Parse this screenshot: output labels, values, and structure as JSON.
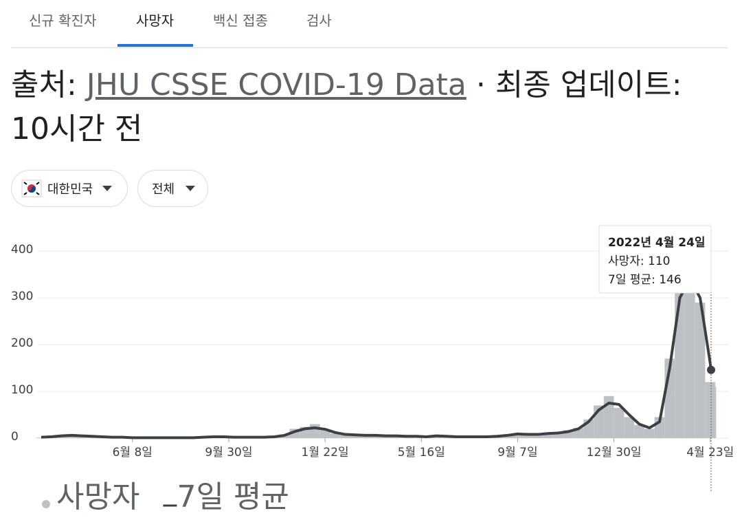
{
  "tabs": [
    "신규 확진자",
    "사망자",
    "백신 접종",
    "검사"
  ],
  "source": {
    "prefix": "출처:",
    "link": "JHU CSSE COVID-19 Data",
    "suffix": "· 최종 업데이트: 10시간 전"
  },
  "filters": [
    "대한민국",
    "전체"
  ],
  "tooltip": {
    "title": "2022년 4월 24일",
    "rows": [
      "사망자: 110",
      "7일 평균: 146"
    ]
  },
  "chart_data": {
    "type": "bar",
    "x": [
      0,
      12,
      24,
      36,
      48,
      60,
      72,
      84,
      96,
      108,
      120,
      132,
      144,
      156,
      168,
      180,
      192,
      204,
      216,
      228,
      240,
      252,
      264,
      276,
      288,
      300,
      312,
      324,
      336,
      348,
      360,
      372,
      384,
      396,
      408,
      420,
      432,
      444,
      456,
      468,
      480,
      492,
      504,
      516,
      528,
      540,
      552,
      564,
      576,
      588,
      600,
      612,
      624,
      636,
      648,
      660,
      672,
      684,
      696,
      708,
      720,
      732,
      744,
      756,
      768,
      780,
      792,
      793
    ],
    "xlim": [
      0,
      793
    ],
    "xticks": [
      {
        "value": 108,
        "label": "6월 8일"
      },
      {
        "value": 222,
        "label": "9월 30일"
      },
      {
        "value": 336,
        "label": "1월 22일"
      },
      {
        "value": 450,
        "label": "5월 16일"
      },
      {
        "value": 564,
        "label": "9월 7일"
      },
      {
        "value": 678,
        "label": "12월 30일"
      },
      {
        "value": 792,
        "label": "4월 23일"
      }
    ],
    "ylim": [
      0,
      450
    ],
    "yticks": [
      0,
      100,
      200,
      300,
      400
    ],
    "grid": true,
    "series": [
      {
        "name": "사망자",
        "type": "bar",
        "color": "#bdc1c6",
        "values": [
          1,
          4,
          6,
          7,
          5,
          3,
          3,
          1,
          2,
          1,
          0,
          1,
          1,
          0,
          2,
          1,
          3,
          2,
          4,
          2,
          1,
          3,
          2,
          4,
          8,
          20,
          24,
          30,
          17,
          10,
          9,
          6,
          7,
          5,
          4,
          6,
          4,
          5,
          2,
          6,
          3,
          2,
          4,
          2,
          3,
          5,
          7,
          11,
          7,
          9,
          12,
          10,
          17,
          22,
          40,
          70,
          90,
          65,
          45,
          28,
          20,
          45,
          170,
          330,
          380,
          290,
          120,
          110
        ]
      },
      {
        "name": "7일 평균",
        "type": "line",
        "color": "#3c4043",
        "values": [
          2,
          3,
          5,
          6,
          5,
          4,
          3,
          2,
          2,
          1,
          1,
          1,
          1,
          1,
          1,
          1,
          2,
          3,
          3,
          2,
          2,
          2,
          2,
          3,
          6,
          14,
          20,
          22,
          19,
          12,
          8,
          7,
          6,
          6,
          5,
          5,
          4,
          4,
          3,
          5,
          4,
          3,
          3,
          3,
          3,
          4,
          6,
          9,
          8,
          8,
          10,
          11,
          14,
          20,
          35,
          60,
          75,
          72,
          50,
          30,
          22,
          35,
          150,
          300,
          340,
          300,
          160,
          146
        ]
      }
    ]
  }
}
